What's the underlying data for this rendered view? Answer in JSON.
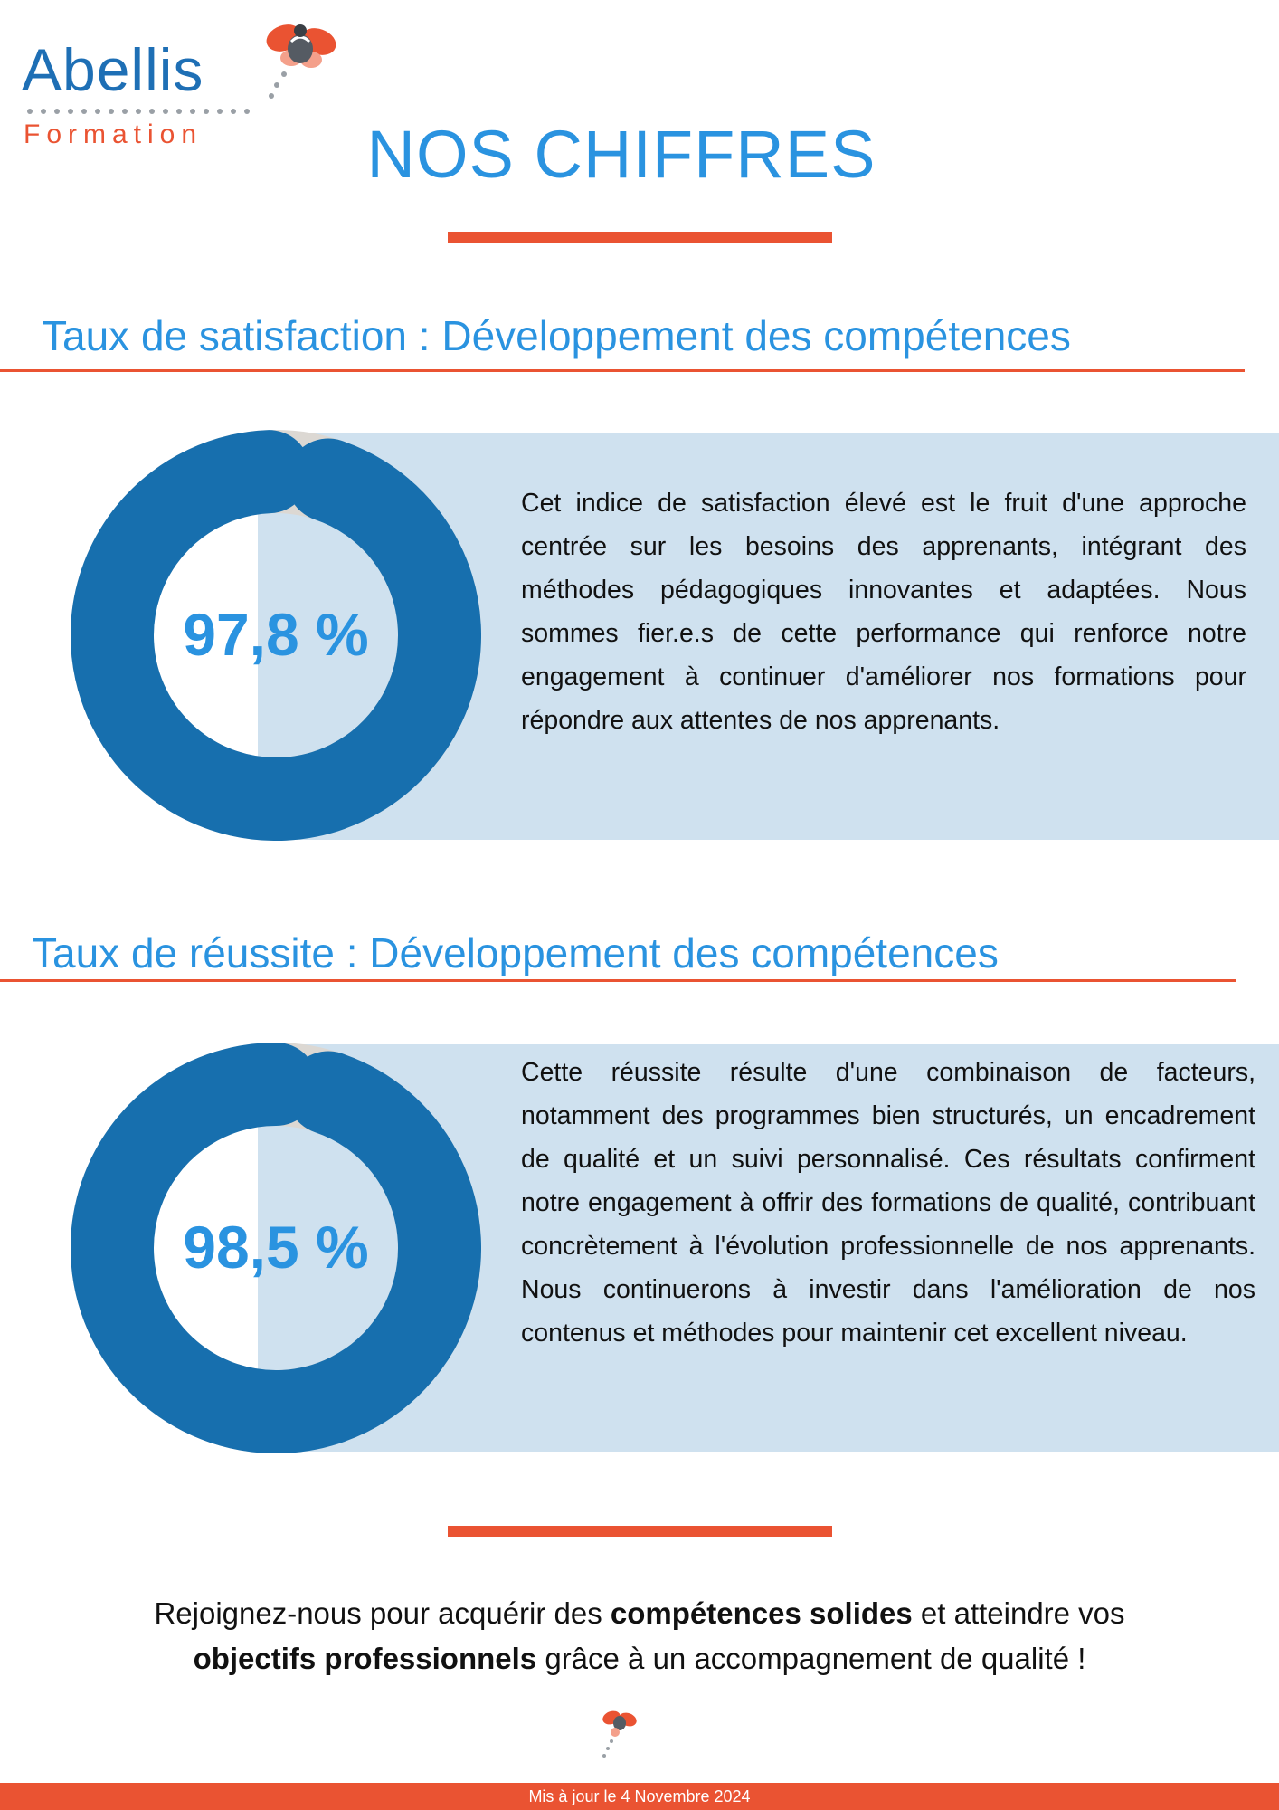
{
  "brand": {
    "name": "Abellis",
    "tagline": "Formation",
    "logo_icon": "bee-icon",
    "colors": {
      "blue": "#1e6fb5",
      "orange": "#ea5332"
    }
  },
  "page_title": "NOS CHIFFRES",
  "sections": [
    {
      "title": "Taux de satisfaction : Développement des compétences",
      "percent_label": "97,8 %",
      "percent_value": 97.8,
      "text": "Cet indice de satisfaction élevé est le fruit d'une approche centrée sur les besoins des apprenants, intégrant des méthodes pédagogiques innovantes et adaptées. Nous sommes fier.e.s de cette performance qui renforce notre engagement à continuer d'améliorer nos formations pour répondre aux attentes de nos apprenants."
    },
    {
      "title": "Taux de réussite : Développement des compétences",
      "percent_label": "98,5 %",
      "percent_value": 98.5,
      "text": "Cette réussite résulte d'une combinaison de facteurs, notamment des programmes bien structurés, un encadrement de qualité et un suivi personnalisé. Ces résultats confirment notre engagement à offrir des formations de qualité, contribuant concrètement à l'évolution professionnelle de nos apprenants. Nous continuerons à investir dans l'amélioration de nos contenus et méthodes pour maintenir cet excellent niveau."
    }
  ],
  "cta": {
    "part1": "Rejoignez-nous pour acquérir des ",
    "bold1": "compétences solides",
    "part2": " et atteindre vos ",
    "bold2": "objectifs professionnels",
    "part3": " grâce à un accompagnement de qualité !"
  },
  "footer": "Mis à jour le 4 Novembre 2024",
  "colors": {
    "title_blue": "#2a93e0",
    "donut_blue": "#176fae",
    "donut_track": "#dcd8d3",
    "panel_bg": "#cfe1ef",
    "accent": "#ea5332"
  }
}
